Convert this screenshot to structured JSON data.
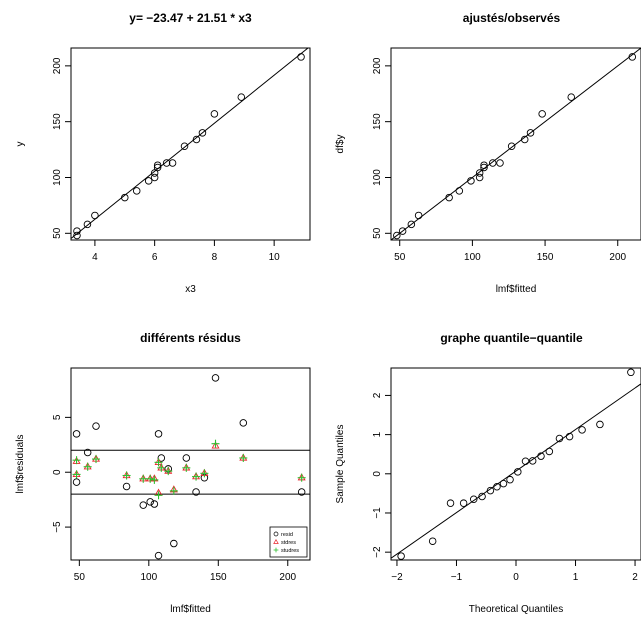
{
  "chart_data": [
    {
      "type": "scatter",
      "title": "y= −23.47 + 21.51 * x3",
      "xlabel": "x3",
      "ylabel": "y",
      "xlim": [
        3.2,
        11.2
      ],
      "ylim": [
        44,
        216
      ],
      "xticks": [
        4,
        6,
        8,
        10
      ],
      "yticks": [
        50,
        100,
        150,
        200
      ],
      "points": {
        "x": [
          3.4,
          3.4,
          3.75,
          4.0,
          5.0,
          5.4,
          5.8,
          6.0,
          6.0,
          6.1,
          6.1,
          6.4,
          6.6,
          7.0,
          7.4,
          7.6,
          8.0,
          8.9,
          10.9
        ],
        "y": [
          48,
          52,
          58,
          66,
          82,
          88,
          97,
          100,
          104,
          109,
          111,
          113,
          113,
          128,
          134,
          140,
          157,
          172,
          208
        ]
      },
      "line": {
        "intercept": -23.47,
        "slope": 21.51
      }
    },
    {
      "type": "scatter",
      "title": "ajustés/observés",
      "xlabel": "lmf$fitted",
      "ylabel": "df$y",
      "xlim": [
        44,
        216
      ],
      "ylim": [
        44,
        216
      ],
      "xticks": [
        50,
        100,
        150,
        200
      ],
      "yticks": [
        50,
        100,
        150,
        200
      ],
      "points": {
        "x": [
          48,
          52,
          58,
          63,
          84,
          91,
          99,
          105,
          105,
          108,
          108,
          114,
          119,
          127,
          136,
          140,
          148,
          168,
          210
        ],
        "y": [
          48,
          52,
          58,
          66,
          82,
          88,
          97,
          100,
          104,
          109,
          111,
          113,
          113,
          128,
          134,
          140,
          157,
          172,
          208
        ]
      },
      "line": {
        "intercept": 0,
        "slope": 1
      }
    },
    {
      "type": "scatter",
      "title": "différents résidus",
      "xlabel": "lmf$fitted",
      "ylabel": "lmf$residuals",
      "xlim": [
        44,
        216
      ],
      "ylim": [
        -8,
        9.5
      ],
      "xticks": [
        50,
        100,
        150,
        200
      ],
      "yticks": [
        -5,
        0,
        5
      ],
      "hlines": [
        2,
        -2
      ],
      "legend": {
        "position": "bottom-right",
        "entries": [
          "resid",
          "stdres",
          "studres"
        ]
      },
      "series": [
        {
          "name": "resid",
          "x": [
            48,
            48,
            56,
            62,
            84,
            96,
            101,
            104,
            107,
            107,
            109,
            114,
            118,
            127,
            134,
            140,
            148,
            168,
            210
          ],
          "y": [
            3.5,
            -0.9,
            1.8,
            4.2,
            -1.3,
            -3.0,
            -2.7,
            -2.9,
            -7.6,
            3.5,
            1.3,
            0.3,
            -6.5,
            1.3,
            -1.8,
            -0.5,
            8.6,
            4.5,
            -1.8
          ]
        },
        {
          "name": "stdres",
          "x": [
            48,
            48,
            56,
            62,
            84,
            96,
            101,
            104,
            107,
            107,
            109,
            114,
            118,
            127,
            134,
            140,
            148,
            168,
            210
          ],
          "y": [
            1.0,
            -0.2,
            0.5,
            1.2,
            -0.3,
            -0.6,
            -0.6,
            -0.6,
            -1.9,
            0.9,
            0.4,
            0.1,
            -1.6,
            0.4,
            -0.4,
            -0.1,
            2.4,
            1.3,
            -0.5
          ]
        },
        {
          "name": "studres",
          "x": [
            48,
            48,
            56,
            62,
            84,
            96,
            101,
            104,
            107,
            107,
            109,
            114,
            118,
            127,
            134,
            140,
            148,
            168,
            210
          ],
          "y": [
            1.1,
            -0.2,
            0.5,
            1.2,
            -0.3,
            -0.6,
            -0.6,
            -0.7,
            -2.1,
            0.9,
            0.4,
            0.1,
            -1.7,
            0.4,
            -0.4,
            -0.1,
            2.6,
            1.3,
            -0.5
          ]
        }
      ]
    },
    {
      "type": "scatter",
      "title": "graphe quantile−quantile",
      "xlabel": "Theoretical Quantiles",
      "ylabel": "Sample Quantiles",
      "xlim": [
        -2.1,
        2.1
      ],
      "ylim": [
        -2.2,
        2.7
      ],
      "xticks": [
        -2,
        -1,
        0,
        1,
        2
      ],
      "yticks": [
        -2,
        -1,
        0,
        1,
        2
      ],
      "points": {
        "x": [
          -1.93,
          -1.4,
          -1.1,
          -0.88,
          -0.71,
          -0.57,
          -0.43,
          -0.32,
          -0.21,
          -0.1,
          0.03,
          0.16,
          0.28,
          0.42,
          0.56,
          0.73,
          0.9,
          1.11,
          1.41,
          1.93
        ],
        "y": [
          -2.1,
          -1.72,
          -0.75,
          -0.75,
          -0.65,
          -0.58,
          -0.43,
          -0.33,
          -0.25,
          -0.15,
          0.05,
          0.32,
          0.33,
          0.45,
          0.57,
          0.9,
          0.95,
          1.12,
          1.26,
          2.59
        ]
      },
      "line": {
        "intercept": 0.07,
        "slope": 1.06
      }
    }
  ]
}
